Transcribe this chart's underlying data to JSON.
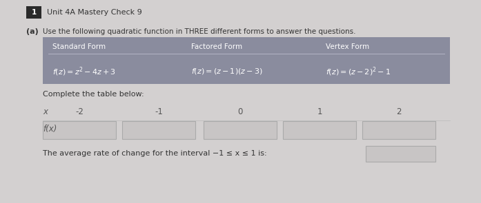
{
  "title_number": "1",
  "title_text": "Unit 4A Mastery Check 9",
  "part_label": "(a)",
  "instruction": "Use the following quadratic function in THREE different forms to answer the questions.",
  "table_header": [
    "Standard Form",
    "Factored Form",
    "Vertex Form"
  ],
  "complete_table_text": "Complete the table below:",
  "x_values": [
    "-2",
    "-1",
    "0",
    "1",
    "2"
  ],
  "avg_rate_text": "The average rate of change for the interval −1 ≤ x ≤ 1 is:",
  "bg_color": "#d3d0d0",
  "table_bg": "#8a8c9e",
  "input_box_bg": "#c8c5c5",
  "input_box_edge": "#aaaaaa"
}
